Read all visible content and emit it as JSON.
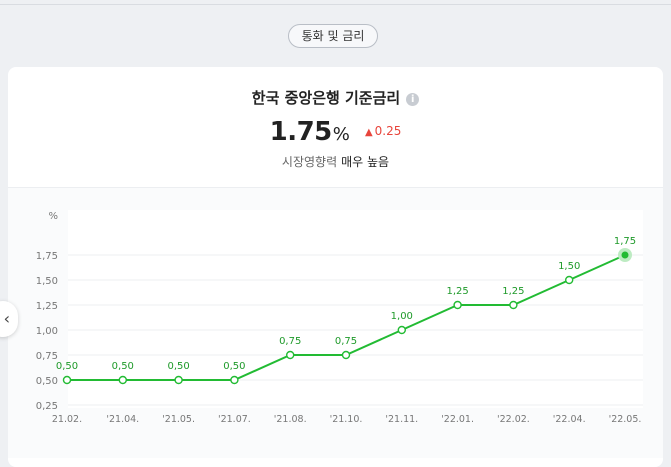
{
  "tag_label": "통화 및 금리",
  "card": {
    "title": "한국 중앙은행 기준금리",
    "info_icon": "i",
    "value": "1.75",
    "unit": "%",
    "change": "0.25",
    "influence_label": "시장영향력",
    "influence_value": "매우 높음"
  },
  "colors": {
    "line": "#22bb33",
    "label": "#1f9a2a",
    "change": "#e8453c"
  },
  "chart_data": {
    "type": "line",
    "ylabel": "%",
    "ylim": [
      0.25,
      1.75
    ],
    "yticks": [
      "0,25",
      "0,50",
      "0,75",
      "1,00",
      "1,25",
      "1,50",
      "1,75"
    ],
    "categories": [
      "21.02.",
      "'21.04.",
      "'21.05.",
      "'21.07.",
      "'21.08.",
      "'21.10.",
      "'21.11.",
      "'22.01.",
      "'22.02.",
      "'22.04.",
      "'22.05."
    ],
    "values": [
      0.5,
      0.5,
      0.5,
      0.5,
      0.75,
      0.75,
      1.0,
      1.25,
      1.25,
      1.5,
      1.75
    ],
    "value_labels": [
      "0,50",
      "0,50",
      "0,50",
      "0,50",
      "0,75",
      "0,75",
      "1,00",
      "1,25",
      "1,25",
      "1,50",
      "1,75"
    ],
    "grid": true
  }
}
